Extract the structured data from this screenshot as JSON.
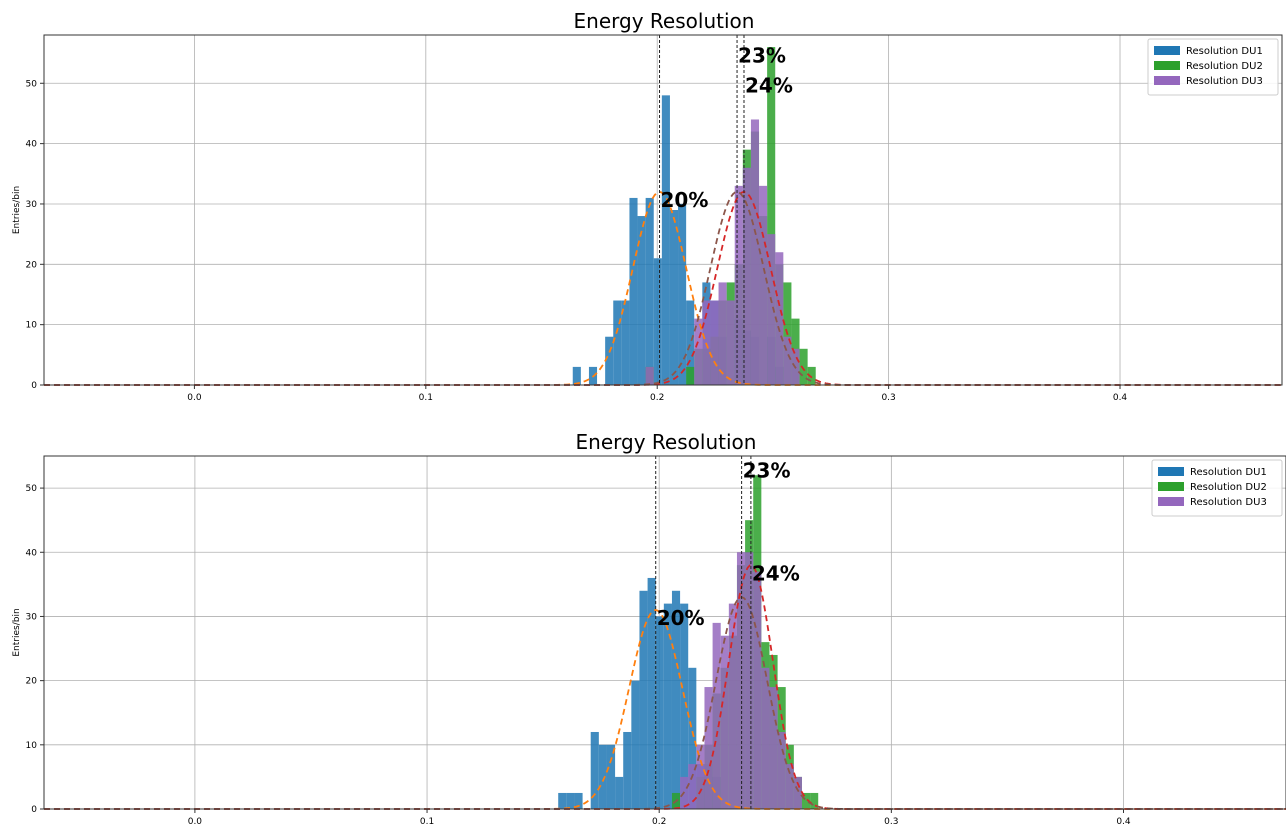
{
  "chart_data": [
    {
      "type": "bar",
      "title": "Energy Resolution",
      "xlabel": "",
      "ylabel": "Entries/bin",
      "xlim": [
        -0.065,
        0.47
      ],
      "ylim": [
        0,
        58
      ],
      "xticks": [
        0.0,
        0.1,
        0.2,
        0.3,
        0.4
      ],
      "xtick_labels": [
        "0.0",
        "0.1",
        "0.2",
        "0.3",
        "0.4"
      ],
      "yticks": [
        0,
        10,
        20,
        30,
        40,
        50
      ],
      "ytick_labels": [
        "0",
        "10",
        "20",
        "30",
        "40",
        "50"
      ],
      "grid": true,
      "legend_position": "top-right",
      "bin_width": 0.0035,
      "series": [
        {
          "name": "Resolution DU1",
          "color": "#1f77b4",
          "hist": [
            [
              0.1635,
              3
            ],
            [
              0.1705,
              3
            ],
            [
              0.1775,
              8
            ],
            [
              0.181,
              14
            ],
            [
              0.1845,
              14
            ],
            [
              0.188,
              31
            ],
            [
              0.1915,
              28
            ],
            [
              0.195,
              31
            ],
            [
              0.1985,
              21
            ],
            [
              0.202,
              48
            ],
            [
              0.2055,
              29
            ],
            [
              0.209,
              30
            ],
            [
              0.2125,
              14
            ],
            [
              0.2195,
              17
            ],
            [
              0.223,
              14
            ],
            [
              0.2265,
              8
            ],
            [
              0.2335,
              11
            ],
            [
              0.237,
              9
            ],
            [
              0.2405,
              8
            ],
            [
              0.2475,
              8
            ],
            [
              0.251,
              3
            ]
          ],
          "fit": {
            "mu": 0.201,
            "sigma": 0.0115,
            "amp": 32,
            "color": "#ff7f0e"
          },
          "mean_line": 0.201,
          "annotation": {
            "text": "20%",
            "x": 0.201,
            "y": 32
          }
        },
        {
          "name": "Resolution DU2",
          "color": "#2ca02c",
          "hist": [
            [
              0.195,
              3
            ],
            [
              0.2125,
              3
            ],
            [
              0.216,
              6
            ],
            [
              0.2195,
              6
            ],
            [
              0.223,
              8
            ],
            [
              0.2265,
              14
            ],
            [
              0.23,
              17
            ],
            [
              0.2335,
              20
            ],
            [
              0.237,
              39
            ],
            [
              0.2405,
              42
            ],
            [
              0.244,
              28
            ],
            [
              0.2475,
              56
            ],
            [
              0.251,
              20
            ],
            [
              0.2545,
              17
            ],
            [
              0.258,
              11
            ],
            [
              0.2615,
              6
            ],
            [
              0.265,
              3
            ]
          ],
          "fit": {
            "mu": 0.2375,
            "sigma": 0.0115,
            "amp": 32,
            "color": "#d62728"
          },
          "mean_line": 0.2375,
          "annotation": {
            "text": "24%",
            "x": 0.2375,
            "y": 51
          }
        },
        {
          "name": "Resolution DU3",
          "color": "#9467bd",
          "hist": [
            [
              0.195,
              3
            ],
            [
              0.216,
              11
            ],
            [
              0.2195,
              14
            ],
            [
              0.223,
              14
            ],
            [
              0.2265,
              17
            ],
            [
              0.23,
              14
            ],
            [
              0.2335,
              33
            ],
            [
              0.237,
              36
            ],
            [
              0.2405,
              44
            ],
            [
              0.244,
              33
            ],
            [
              0.2475,
              25
            ],
            [
              0.251,
              22
            ],
            [
              0.2545,
              8
            ],
            [
              0.258,
              6
            ]
          ],
          "fit": {
            "mu": 0.2345,
            "sigma": 0.0115,
            "amp": 32,
            "color": "#8c564b"
          },
          "mean_line": 0.2345,
          "annotation": {
            "text": "23%",
            "x": 0.2345,
            "y": 56
          }
        }
      ]
    },
    {
      "type": "bar",
      "title": "Energy Resolution",
      "xlabel": "",
      "ylabel": "Entries/bin",
      "xlim": [
        -0.065,
        0.47
      ],
      "ylim": [
        0,
        55
      ],
      "xticks": [
        0.0,
        0.1,
        0.2,
        0.3,
        0.4
      ],
      "xtick_labels": [
        "0.0",
        "0.1",
        "0.2",
        "0.3",
        "0.4"
      ],
      "yticks": [
        0,
        10,
        20,
        30,
        40,
        50
      ],
      "ytick_labels": [
        "0",
        "10",
        "20",
        "30",
        "40",
        "50"
      ],
      "grid": true,
      "legend_position": "top-right",
      "bin_width": 0.0035,
      "series": [
        {
          "name": "Resolution DU1",
          "color": "#1f77b4",
          "hist": [
            [
              0.1565,
              2.5
            ],
            [
              0.16,
              2.5
            ],
            [
              0.1635,
              2.5
            ],
            [
              0.1705,
              12
            ],
            [
              0.174,
              10
            ],
            [
              0.1775,
              10
            ],
            [
              0.181,
              5
            ],
            [
              0.1845,
              12
            ],
            [
              0.188,
              20
            ],
            [
              0.1915,
              34
            ],
            [
              0.195,
              36
            ],
            [
              0.1985,
              30
            ],
            [
              0.202,
              32
            ],
            [
              0.2055,
              34
            ],
            [
              0.209,
              32
            ],
            [
              0.2125,
              22
            ],
            [
              0.216,
              7
            ],
            [
              0.2195,
              7
            ],
            [
              0.223,
              5
            ]
          ],
          "fit": {
            "mu": 0.1985,
            "sigma": 0.0115,
            "amp": 31,
            "color": "#ff7f0e"
          },
          "mean_line": 0.1985,
          "annotation": {
            "text": "20%",
            "x": 0.1985,
            "y": 31
          }
        },
        {
          "name": "Resolution DU2",
          "color": "#2ca02c",
          "hist": [
            [
              0.2055,
              2.5
            ],
            [
              0.216,
              5
            ],
            [
              0.2195,
              10
            ],
            [
              0.223,
              18
            ],
            [
              0.2265,
              22
            ],
            [
              0.23,
              27
            ],
            [
              0.2335,
              38
            ],
            [
              0.237,
              45
            ],
            [
              0.2405,
              52
            ],
            [
              0.244,
              26
            ],
            [
              0.2475,
              24
            ],
            [
              0.251,
              19
            ],
            [
              0.2545,
              10
            ],
            [
              0.258,
              5
            ],
            [
              0.2615,
              2.5
            ],
            [
              0.265,
              2.5
            ]
          ],
          "fit": {
            "mu": 0.2395,
            "sigma": 0.0095,
            "amp": 38,
            "color": "#d62728"
          },
          "mean_line": 0.2395,
          "annotation": {
            "text": "24%",
            "x": 0.2395,
            "y": 38
          }
        },
        {
          "name": "Resolution DU3",
          "color": "#9467bd",
          "hist": [
            [
              0.209,
              5
            ],
            [
              0.2125,
              7
            ],
            [
              0.216,
              10
            ],
            [
              0.2195,
              19
            ],
            [
              0.223,
              29
            ],
            [
              0.2265,
              27
            ],
            [
              0.23,
              32
            ],
            [
              0.2335,
              40
            ],
            [
              0.237,
              40
            ],
            [
              0.2405,
              37
            ],
            [
              0.244,
              22
            ],
            [
              0.2475,
              19
            ],
            [
              0.251,
              12
            ],
            [
              0.2545,
              7
            ],
            [
              0.258,
              5
            ]
          ],
          "fit": {
            "mu": 0.2355,
            "sigma": 0.011,
            "amp": 33,
            "color": "#8c564b"
          },
          "mean_line": 0.2355,
          "annotation": {
            "text": "23%",
            "x": 0.2355,
            "y": 54
          }
        }
      ]
    }
  ]
}
